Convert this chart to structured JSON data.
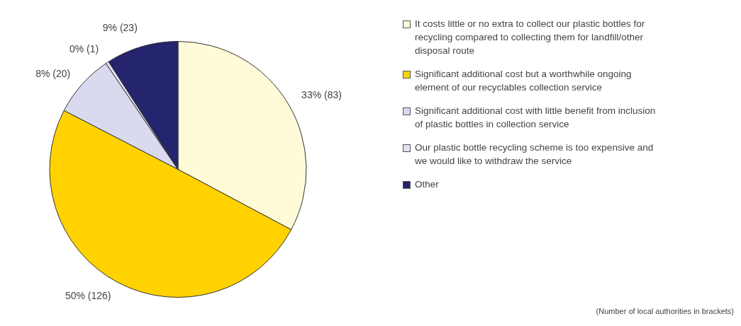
{
  "chart_data": {
    "type": "pie",
    "categories": [
      "It costs little or no extra to collect our plastic bottles for recycling compared to collecting them for landfill/other disposal route",
      "Significant additional cost but a worthwhile ongoing element of our recyclables collection service",
      "Significant additional cost with little benefit from inclusion of plastic bottles in collection service",
      "Our plastic bottle recycling scheme is too expensive and we would like to withdraw the service",
      "Other"
    ],
    "values": [
      83,
      126,
      20,
      1,
      23
    ],
    "value_labels": [
      "33% (83)",
      "50% (126)",
      "8% (20)",
      "0% (1)",
      "9% (23)"
    ],
    "colors": [
      "#fffbd8",
      "#ffd200",
      "#d9d9ef",
      "#e2e2ec",
      "#24246f"
    ],
    "legend": "right",
    "annotations": [
      "(Number of local authorities in brackets)"
    ]
  }
}
